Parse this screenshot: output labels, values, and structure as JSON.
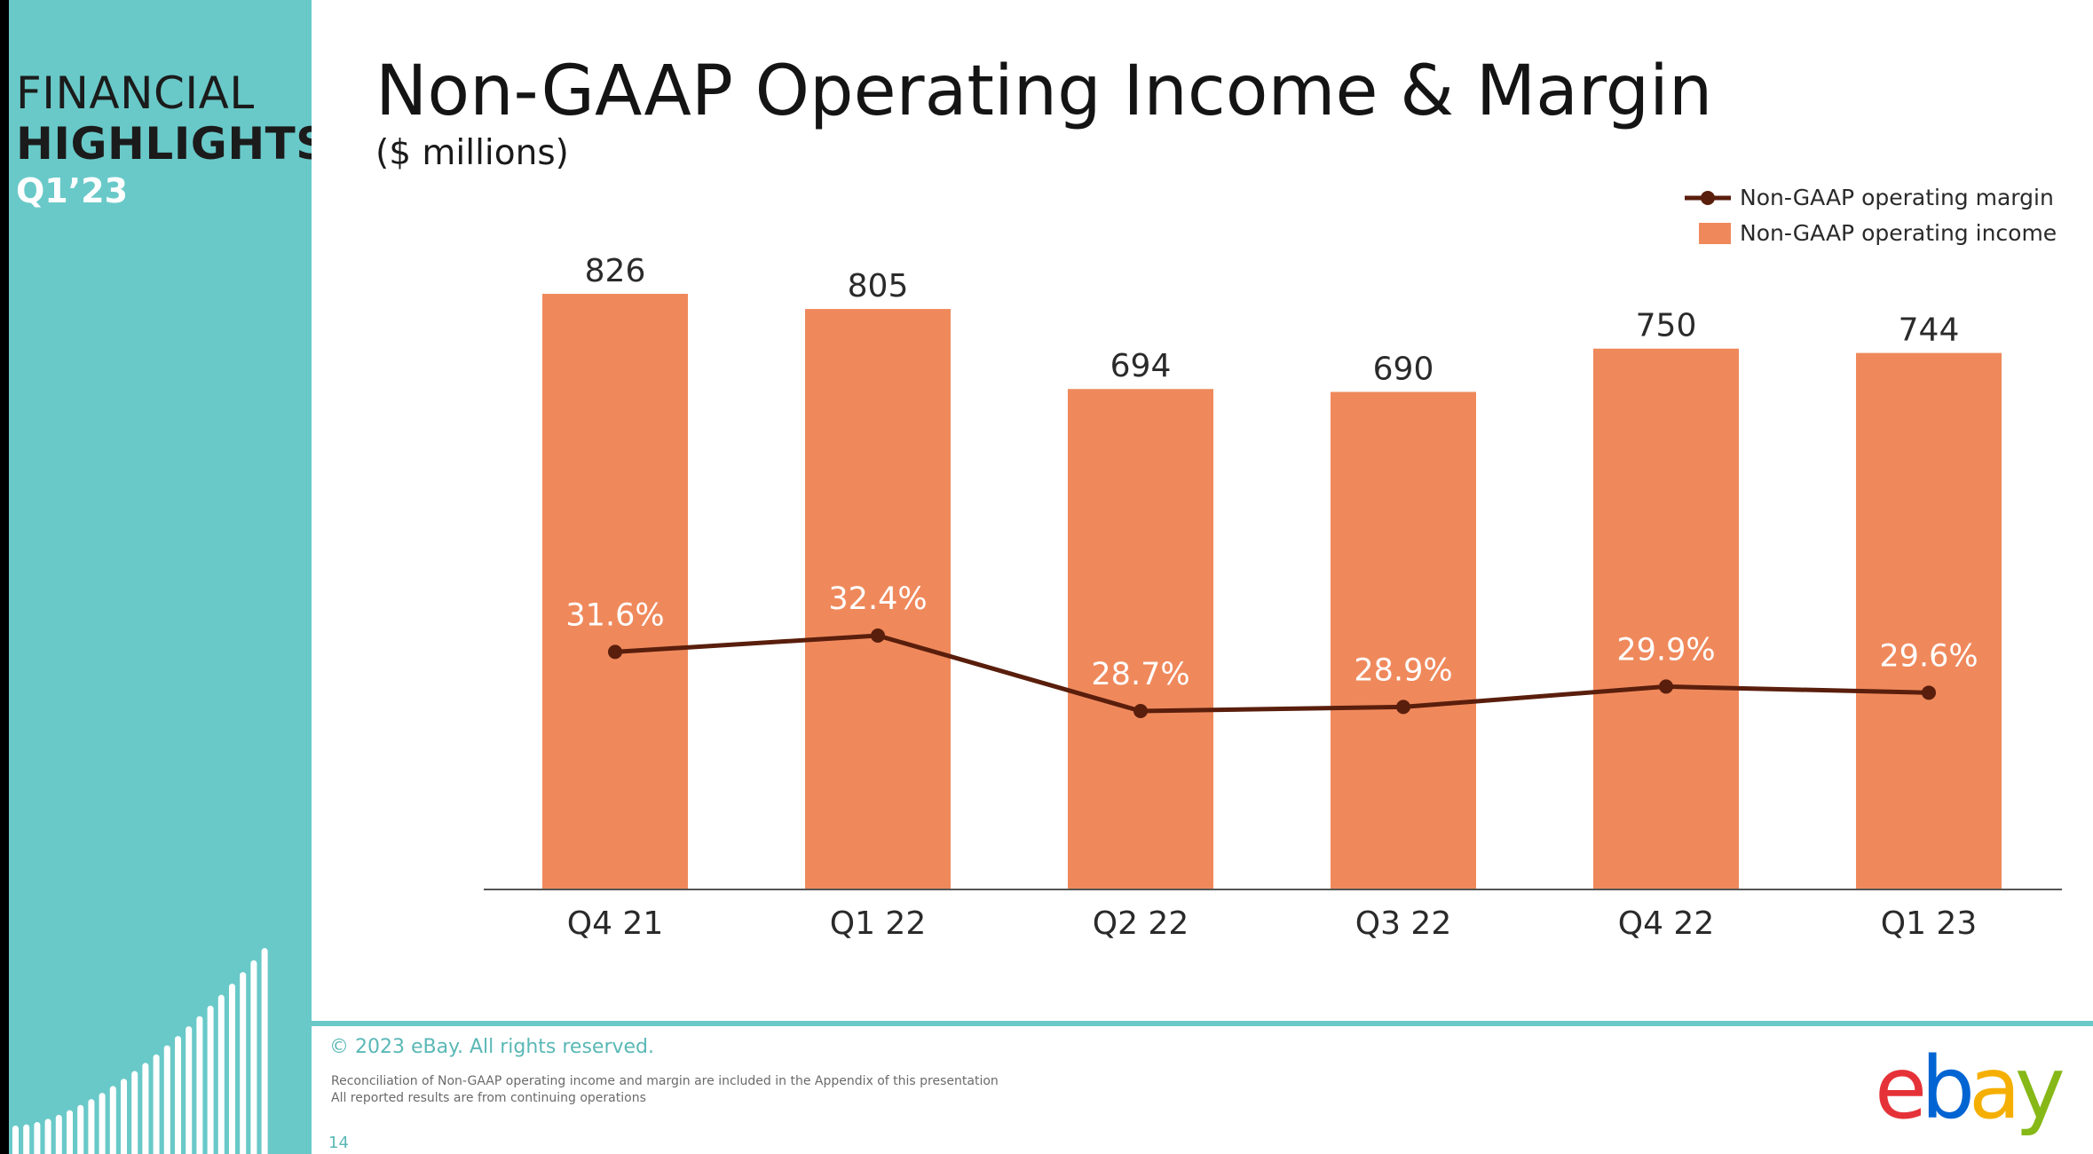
{
  "sidebar": {
    "line1": "FINANCIAL",
    "line2": "HIGHLIGHTS",
    "line3": "Q1’23"
  },
  "header": {
    "title": "Non-GAAP Operating Income & Margin",
    "subtitle": "($ millions)"
  },
  "legend": {
    "margin_label": "Non-GAAP operating margin",
    "income_label": "Non-GAAP operating income"
  },
  "footer": {
    "copyright": "© 2023 eBay. All rights reserved.",
    "note1": "Reconciliation of Non-GAAP operating income and margin are included in the Appendix of this presentation",
    "note2": "All reported results are from continuing operations",
    "page_number": "14",
    "logo_letters": [
      "e",
      "b",
      "a",
      "y"
    ]
  },
  "colors": {
    "sidebar": "#69c9c8",
    "bar": "#ef895c",
    "line": "#5a1e0c",
    "logo": [
      "#e53238",
      "#0064d2",
      "#f5af02",
      "#86b817"
    ]
  },
  "chart_data": {
    "type": "bar",
    "categories": [
      "Q4 21",
      "Q1 22",
      "Q2 22",
      "Q3 22",
      "Q4 22",
      "Q1 23"
    ],
    "series": [
      {
        "name": "Non-GAAP operating income",
        "type": "bar",
        "values": [
          826,
          805,
          694,
          690,
          750,
          744
        ],
        "labels": [
          "826",
          "805",
          "694",
          "690",
          "750",
          "744"
        ]
      },
      {
        "name": "Non-GAAP operating margin",
        "type": "line",
        "values": [
          31.6,
          32.4,
          28.7,
          28.9,
          29.9,
          29.6
        ],
        "labels": [
          "31.6%",
          "32.4%",
          "28.7%",
          "28.9%",
          "29.9%",
          "29.6%"
        ]
      }
    ],
    "title": "Non-GAAP Operating Income & Margin",
    "subtitle": "($ millions)",
    "ylim": [
      0,
      826
    ],
    "grid": false,
    "legend_position": "top-right"
  }
}
